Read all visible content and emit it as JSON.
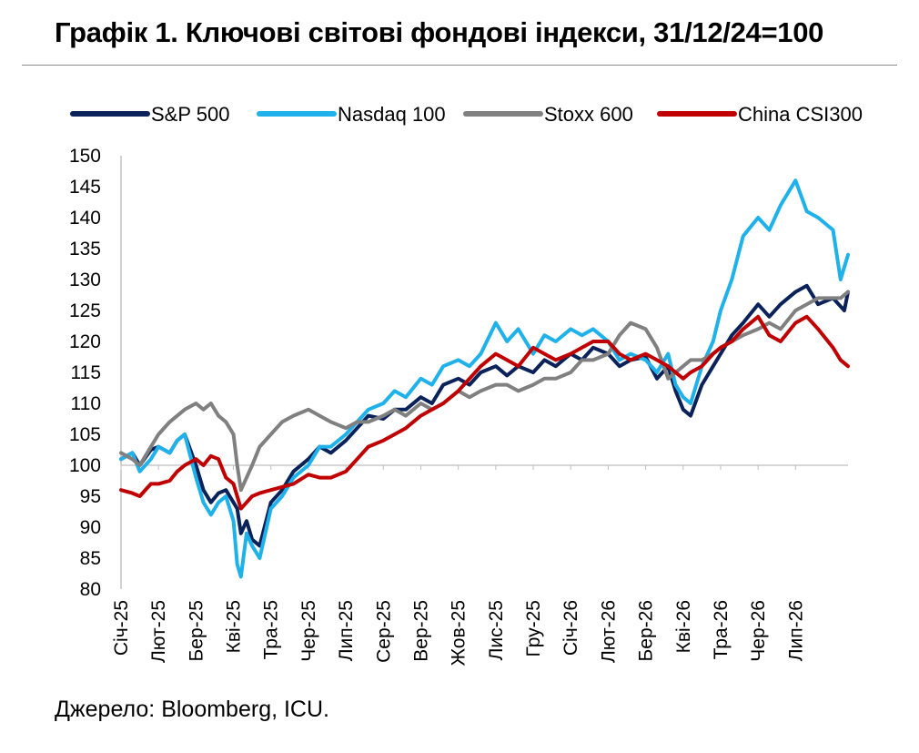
{
  "title": "Графік 1. Ключові світові фондові індекси, 31/12/24=100",
  "source": "Джерело: Bloomberg, ICU.",
  "chart_data": {
    "type": "line",
    "title": "Графік 1. Ключові світові фондові індекси, 31/12/24=100",
    "ylim": [
      80,
      150
    ],
    "yticks": [
      80,
      85,
      90,
      95,
      100,
      105,
      110,
      115,
      120,
      125,
      130,
      135,
      140,
      145,
      150
    ],
    "x_tick_labels": [
      "Січ-25",
      "Лют-25",
      "Бер-25",
      "Кві-25",
      "Тра-25",
      "Чер-25",
      "Лип-25",
      "Сер-25",
      "Вер-25",
      "Жов-25",
      "Лис-25",
      "Гру-25",
      "Січ-26",
      "Лют-26",
      "Бер-26",
      "Кві-26",
      "Тра-26",
      "Чер-26",
      "Лип-26"
    ],
    "x_months_span": [
      0,
      19.4
    ],
    "grid": false,
    "legend_position": "top",
    "series": [
      {
        "name": "S&P 500",
        "color": "#0a2259",
        "x": [
          0,
          0.3,
          0.5,
          0.8,
          1.0,
          1.3,
          1.5,
          1.7,
          2.0,
          2.2,
          2.4,
          2.6,
          2.8,
          3.0,
          3.1,
          3.2,
          3.35,
          3.5,
          3.7,
          4.0,
          4.3,
          4.6,
          5.0,
          5.3,
          5.6,
          6.0,
          6.3,
          6.6,
          7.0,
          7.3,
          7.6,
          8.0,
          8.3,
          8.6,
          9.0,
          9.3,
          9.6,
          10.0,
          10.3,
          10.6,
          11.0,
          11.3,
          11.6,
          12.0,
          12.3,
          12.6,
          13.0,
          13.3,
          13.6,
          14.0,
          14.3,
          14.6,
          14.8,
          15.0,
          15.2,
          15.5,
          15.8,
          16.0,
          16.3,
          16.6,
          17.0,
          17.3,
          17.6,
          18.0,
          18.3,
          18.6,
          19.0,
          19.3,
          19.4
        ],
        "values": [
          101,
          102,
          100,
          102.5,
          103,
          102,
          104,
          105,
          100,
          96,
          94,
          95.5,
          96,
          94,
          93,
          89,
          91,
          88,
          87,
          94,
          96,
          99,
          101,
          103,
          102,
          104,
          106,
          108,
          107.5,
          109,
          109,
          111,
          110,
          113,
          114,
          113,
          115,
          116,
          114.5,
          116,
          115,
          117,
          116,
          118,
          117,
          119,
          118,
          116,
          117,
          117.5,
          114,
          116,
          112,
          109,
          108,
          113,
          116,
          118,
          121,
          123,
          126,
          124,
          126,
          128,
          129,
          126,
          127,
          125,
          128
        ]
      },
      {
        "name": "Nasdaq 100",
        "color": "#1fb1e9",
        "x": [
          0,
          0.3,
          0.5,
          0.8,
          1.0,
          1.3,
          1.5,
          1.7,
          2.0,
          2.2,
          2.4,
          2.6,
          2.8,
          3.0,
          3.1,
          3.2,
          3.35,
          3.5,
          3.7,
          4.0,
          4.3,
          4.6,
          5.0,
          5.3,
          5.6,
          6.0,
          6.3,
          6.6,
          7.0,
          7.3,
          7.6,
          8.0,
          8.3,
          8.6,
          9.0,
          9.3,
          9.6,
          10.0,
          10.3,
          10.6,
          11.0,
          11.3,
          11.6,
          12.0,
          12.3,
          12.6,
          13.0,
          13.3,
          13.6,
          14.0,
          14.3,
          14.6,
          14.8,
          15.0,
          15.2,
          15.5,
          15.8,
          16.0,
          16.3,
          16.6,
          17.0,
          17.3,
          17.6,
          18.0,
          18.3,
          18.6,
          19.0,
          19.2,
          19.4
        ],
        "values": [
          101,
          102,
          99,
          101,
          103,
          102,
          104,
          105,
          98,
          94,
          92,
          94,
          95,
          91,
          84,
          82,
          89,
          87,
          85,
          93,
          95,
          98,
          100,
          103,
          103,
          105,
          107,
          109,
          110,
          112,
          111,
          114,
          113,
          116,
          117,
          116,
          118,
          123,
          120,
          122,
          118,
          121,
          120,
          122,
          121,
          122,
          120,
          117,
          118,
          117,
          115,
          118,
          113,
          111,
          110,
          116,
          120,
          125,
          130,
          137,
          140,
          138,
          142,
          146,
          141,
          140,
          138,
          130,
          134
        ]
      },
      {
        "name": "Stoxx 600",
        "color": "#808080",
        "x": [
          0,
          0.3,
          0.5,
          0.8,
          1.0,
          1.3,
          1.5,
          1.7,
          2.0,
          2.2,
          2.4,
          2.6,
          2.8,
          3.0,
          3.1,
          3.2,
          3.35,
          3.5,
          3.7,
          4.0,
          4.3,
          4.6,
          5.0,
          5.3,
          5.6,
          6.0,
          6.3,
          6.6,
          7.0,
          7.3,
          7.6,
          8.0,
          8.3,
          8.6,
          9.0,
          9.3,
          9.6,
          10.0,
          10.3,
          10.6,
          11.0,
          11.3,
          11.6,
          12.0,
          12.3,
          12.6,
          13.0,
          13.3,
          13.6,
          14.0,
          14.3,
          14.6,
          14.8,
          15.0,
          15.2,
          15.5,
          15.8,
          16.0,
          16.3,
          16.6,
          17.0,
          17.3,
          17.6,
          18.0,
          18.3,
          18.6,
          19.0,
          19.2,
          19.4
        ],
        "values": [
          102,
          101,
          100,
          103,
          105,
          107,
          108,
          109,
          110,
          109,
          110,
          108,
          107,
          105,
          100,
          96,
          98,
          100,
          103,
          105,
          107,
          108,
          109,
          108,
          107,
          106,
          107,
          107,
          108,
          109,
          108,
          110,
          109,
          110,
          112,
          111,
          112,
          113,
          113,
          112,
          113,
          114,
          114,
          115,
          117,
          117,
          118,
          121,
          123,
          122,
          119,
          114,
          115,
          116,
          117,
          117,
          118,
          119,
          120,
          121,
          122,
          123,
          122,
          125,
          126,
          127,
          127,
          127,
          128
        ]
      },
      {
        "name": "China CSI300",
        "color": "#c00000",
        "x": [
          0,
          0.3,
          0.5,
          0.8,
          1.0,
          1.3,
          1.5,
          1.7,
          2.0,
          2.2,
          2.4,
          2.6,
          2.8,
          3.0,
          3.1,
          3.2,
          3.35,
          3.5,
          3.7,
          4.0,
          4.3,
          4.6,
          5.0,
          5.3,
          5.6,
          6.0,
          6.3,
          6.6,
          7.0,
          7.3,
          7.6,
          8.0,
          8.3,
          8.6,
          9.0,
          9.3,
          9.6,
          10.0,
          10.3,
          10.6,
          11.0,
          11.3,
          11.6,
          12.0,
          12.3,
          12.6,
          13.0,
          13.3,
          13.6,
          14.0,
          14.3,
          14.6,
          14.8,
          15.0,
          15.2,
          15.5,
          15.8,
          16.0,
          16.3,
          16.6,
          17.0,
          17.3,
          17.6,
          18.0,
          18.3,
          18.6,
          19.0,
          19.2,
          19.4
        ],
        "values": [
          96,
          95.5,
          95,
          97,
          97,
          97.5,
          99,
          100,
          101,
          100,
          101.5,
          101,
          98,
          97,
          95,
          93,
          94,
          95,
          95.5,
          96,
          96.5,
          97,
          98.5,
          98,
          98,
          99,
          101,
          103,
          104,
          105,
          106,
          108,
          109,
          110,
          112,
          114,
          116,
          118,
          117,
          116,
          119,
          118,
          117,
          118,
          119,
          120,
          120,
          118,
          117,
          118,
          117,
          116,
          115,
          114,
          115,
          116,
          118,
          119,
          120,
          122,
          124,
          121,
          120,
          123,
          124,
          122,
          119,
          117,
          116
        ]
      }
    ]
  }
}
